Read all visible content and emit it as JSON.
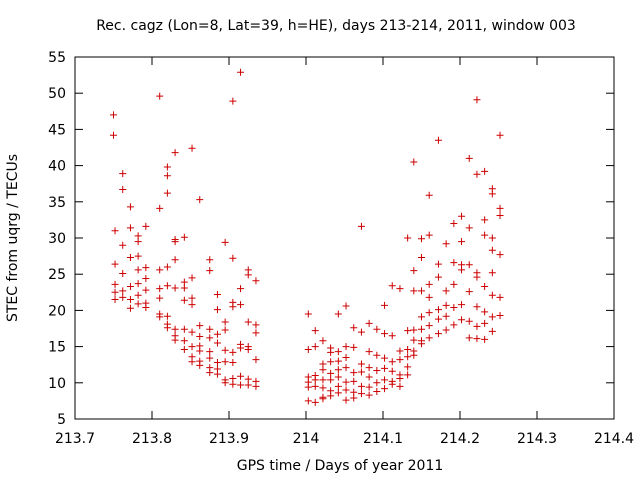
{
  "chart_data": {
    "type": "scatter",
    "title": "Rec. cagz (Lon=8, Lat=39, h=HE), days 213-214, 2011, window 003",
    "xlabel": "GPS time / Days of year 2011",
    "ylabel": "STEC from uqrg / TECUs",
    "xlim": [
      213.7,
      214.4
    ],
    "ylim": [
      5,
      55
    ],
    "xticks": [
      "213.7",
      "213.8",
      "213.9",
      "214",
      "214.1",
      "214.2",
      "214.3",
      "214.4"
    ],
    "yticks": [
      "5",
      "10",
      "15",
      "20",
      "25",
      "30",
      "35",
      "40",
      "45",
      "50",
      "55"
    ],
    "grid": false,
    "marker": "plus",
    "color": "#cc0000",
    "points": [
      [
        213.75,
        47.0
      ],
      [
        213.75,
        44.2
      ],
      [
        213.752,
        31.0
      ],
      [
        213.752,
        26.4
      ],
      [
        213.752,
        23.6
      ],
      [
        213.752,
        22.5
      ],
      [
        213.752,
        21.5
      ],
      [
        213.762,
        38.9
      ],
      [
        213.762,
        36.7
      ],
      [
        213.762,
        29.0
      ],
      [
        213.762,
        25.1
      ],
      [
        213.762,
        22.7
      ],
      [
        213.762,
        21.8
      ],
      [
        213.772,
        34.3
      ],
      [
        213.772,
        31.4
      ],
      [
        213.772,
        27.3
      ],
      [
        213.772,
        23.3
      ],
      [
        213.772,
        21.5
      ],
      [
        213.772,
        20.3
      ],
      [
        213.782,
        30.3
      ],
      [
        213.782,
        29.5
      ],
      [
        213.782,
        27.5
      ],
      [
        213.782,
        25.6
      ],
      [
        213.782,
        23.7
      ],
      [
        213.782,
        22.1
      ],
      [
        213.782,
        20.9
      ],
      [
        213.792,
        31.6
      ],
      [
        213.792,
        25.9
      ],
      [
        213.792,
        24.4
      ],
      [
        213.792,
        22.8
      ],
      [
        213.792,
        21.0
      ],
      [
        213.792,
        20.4
      ],
      [
        213.81,
        49.6
      ],
      [
        213.81,
        34.1
      ],
      [
        213.81,
        25.6
      ],
      [
        213.81,
        23.0
      ],
      [
        213.81,
        21.7
      ],
      [
        213.81,
        19.5
      ],
      [
        213.81,
        19.1
      ],
      [
        213.82,
        39.8
      ],
      [
        213.82,
        38.6
      ],
      [
        213.82,
        36.2
      ],
      [
        213.82,
        26.0
      ],
      [
        213.82,
        23.4
      ],
      [
        213.82,
        19.2
      ],
      [
        213.82,
        18.1
      ],
      [
        213.82,
        17.6
      ],
      [
        213.83,
        41.8
      ],
      [
        213.83,
        29.8
      ],
      [
        213.83,
        29.5
      ],
      [
        213.83,
        27.0
      ],
      [
        213.83,
        23.1
      ],
      [
        213.83,
        17.4
      ],
      [
        213.83,
        16.5
      ],
      [
        213.83,
        15.9
      ],
      [
        213.842,
        30.1
      ],
      [
        213.842,
        23.9
      ],
      [
        213.842,
        23.1
      ],
      [
        213.842,
        21.4
      ],
      [
        213.842,
        17.4
      ],
      [
        213.842,
        15.8
      ],
      [
        213.842,
        14.6
      ],
      [
        213.852,
        42.4
      ],
      [
        213.852,
        24.5
      ],
      [
        213.852,
        21.7
      ],
      [
        213.852,
        20.8
      ],
      [
        213.852,
        17.0
      ],
      [
        213.852,
        15.0
      ],
      [
        213.852,
        13.6
      ],
      [
        213.852,
        12.9
      ],
      [
        213.862,
        35.3
      ],
      [
        213.862,
        17.9
      ],
      [
        213.862,
        16.4
      ],
      [
        213.862,
        15.1
      ],
      [
        213.862,
        14.4
      ],
      [
        213.862,
        13.0
      ],
      [
        213.862,
        12.4
      ],
      [
        213.875,
        27.0
      ],
      [
        213.875,
        25.5
      ],
      [
        213.875,
        17.4
      ],
      [
        213.875,
        16.2
      ],
      [
        213.875,
        14.3
      ],
      [
        213.875,
        13.4
      ],
      [
        213.875,
        12.1
      ],
      [
        213.875,
        11.4
      ],
      [
        213.885,
        22.2
      ],
      [
        213.885,
        20.1
      ],
      [
        213.885,
        16.7
      ],
      [
        213.885,
        15.5
      ],
      [
        213.885,
        12.8
      ],
      [
        213.885,
        11.9
      ],
      [
        213.885,
        11.2
      ],
      [
        213.895,
        29.4
      ],
      [
        213.895,
        18.4
      ],
      [
        213.895,
        17.3
      ],
      [
        213.895,
        14.5
      ],
      [
        213.895,
        12.9
      ],
      [
        213.895,
        10.4
      ],
      [
        213.895,
        10.0
      ],
      [
        213.905,
        48.9
      ],
      [
        213.905,
        27.2
      ],
      [
        213.905,
        21.1
      ],
      [
        213.905,
        20.5
      ],
      [
        213.905,
        14.2
      ],
      [
        213.905,
        12.8
      ],
      [
        213.905,
        10.6
      ],
      [
        213.905,
        9.8
      ],
      [
        213.915,
        52.9
      ],
      [
        213.915,
        23.0
      ],
      [
        213.915,
        20.8
      ],
      [
        213.915,
        15.3
      ],
      [
        213.915,
        14.8
      ],
      [
        213.915,
        10.9
      ],
      [
        213.915,
        9.7
      ],
      [
        213.925,
        25.6
      ],
      [
        213.925,
        24.9
      ],
      [
        213.925,
        18.4
      ],
      [
        213.925,
        15.0
      ],
      [
        213.925,
        14.6
      ],
      [
        213.925,
        10.5
      ],
      [
        213.925,
        9.7
      ],
      [
        213.935,
        24.1
      ],
      [
        213.935,
        18.0
      ],
      [
        213.935,
        16.9
      ],
      [
        213.935,
        13.2
      ],
      [
        213.935,
        10.2
      ],
      [
        213.935,
        9.5
      ],
      [
        214.003,
        19.5
      ],
      [
        214.003,
        14.6
      ],
      [
        214.003,
        10.8
      ],
      [
        214.003,
        10.1
      ],
      [
        214.003,
        9.4
      ],
      [
        214.003,
        7.5
      ],
      [
        214.012,
        17.2
      ],
      [
        214.012,
        15.0
      ],
      [
        214.012,
        11.0
      ],
      [
        214.012,
        10.4
      ],
      [
        214.012,
        9.5
      ],
      [
        214.012,
        7.3
      ],
      [
        214.022,
        15.8
      ],
      [
        214.022,
        12.6
      ],
      [
        214.022,
        11.8
      ],
      [
        214.022,
        10.4
      ],
      [
        214.022,
        9.3
      ],
      [
        214.022,
        8.0
      ],
      [
        214.022,
        7.8
      ],
      [
        214.032,
        14.8
      ],
      [
        214.032,
        14.2
      ],
      [
        214.032,
        12.9
      ],
      [
        214.032,
        11.3
      ],
      [
        214.032,
        10.4
      ],
      [
        214.032,
        8.9
      ],
      [
        214.032,
        8.2
      ],
      [
        214.042,
        19.5
      ],
      [
        214.042,
        14.3
      ],
      [
        214.042,
        13.0
      ],
      [
        214.042,
        11.8
      ],
      [
        214.042,
        10.8
      ],
      [
        214.042,
        9.5
      ],
      [
        214.042,
        8.6
      ],
      [
        214.052,
        20.6
      ],
      [
        214.052,
        15.0
      ],
      [
        214.052,
        13.5
      ],
      [
        214.052,
        12.1
      ],
      [
        214.052,
        10.1
      ],
      [
        214.052,
        9.0
      ],
      [
        214.052,
        7.6
      ],
      [
        214.062,
        17.6
      ],
      [
        214.062,
        14.9
      ],
      [
        214.062,
        11.4
      ],
      [
        214.062,
        10.2
      ],
      [
        214.062,
        8.7
      ],
      [
        214.062,
        7.9
      ],
      [
        214.072,
        31.6
      ],
      [
        214.072,
        17.0
      ],
      [
        214.072,
        12.6
      ],
      [
        214.072,
        11.5
      ],
      [
        214.072,
        9.5
      ],
      [
        214.072,
        8.5
      ],
      [
        214.082,
        18.2
      ],
      [
        214.082,
        14.3
      ],
      [
        214.082,
        12.1
      ],
      [
        214.082,
        10.8
      ],
      [
        214.082,
        9.4
      ],
      [
        214.082,
        8.3
      ],
      [
        214.092,
        17.4
      ],
      [
        214.092,
        13.8
      ],
      [
        214.092,
        11.7
      ],
      [
        214.092,
        10.0
      ],
      [
        214.092,
        8.8
      ],
      [
        214.102,
        20.7
      ],
      [
        214.102,
        16.8
      ],
      [
        214.102,
        13.4
      ],
      [
        214.102,
        12.0
      ],
      [
        214.102,
        10.4
      ],
      [
        214.102,
        9.2
      ],
      [
        214.112,
        23.4
      ],
      [
        214.112,
        16.5
      ],
      [
        214.112,
        12.9
      ],
      [
        214.112,
        11.6
      ],
      [
        214.112,
        10.2
      ],
      [
        214.112,
        9.8
      ],
      [
        214.122,
        23.0
      ],
      [
        214.122,
        14.4
      ],
      [
        214.122,
        13.2
      ],
      [
        214.122,
        11.1
      ],
      [
        214.122,
        10.6
      ],
      [
        214.122,
        9.5
      ],
      [
        214.132,
        30.0
      ],
      [
        214.132,
        17.2
      ],
      [
        214.132,
        14.6
      ],
      [
        214.132,
        13.6
      ],
      [
        214.132,
        12.2
      ],
      [
        214.132,
        11.1
      ],
      [
        214.14,
        40.5
      ],
      [
        214.14,
        25.5
      ],
      [
        214.14,
        22.7
      ],
      [
        214.14,
        17.3
      ],
      [
        214.14,
        15.9
      ],
      [
        214.14,
        14.4
      ],
      [
        214.14,
        13.8
      ],
      [
        214.15,
        29.9
      ],
      [
        214.15,
        27.3
      ],
      [
        214.15,
        22.7
      ],
      [
        214.15,
        19.1
      ],
      [
        214.15,
        17.4
      ],
      [
        214.15,
        15.8
      ],
      [
        214.15,
        15.4
      ],
      [
        214.16,
        35.9
      ],
      [
        214.16,
        30.4
      ],
      [
        214.16,
        23.6
      ],
      [
        214.16,
        21.8
      ],
      [
        214.16,
        19.7
      ],
      [
        214.16,
        17.9
      ],
      [
        214.16,
        16.2
      ],
      [
        214.172,
        43.5
      ],
      [
        214.172,
        26.4
      ],
      [
        214.172,
        24.6
      ],
      [
        214.172,
        20.1
      ],
      [
        214.172,
        18.8
      ],
      [
        214.172,
        16.8
      ],
      [
        214.182,
        29.2
      ],
      [
        214.182,
        22.7
      ],
      [
        214.182,
        20.7
      ],
      [
        214.182,
        19.2
      ],
      [
        214.182,
        17.3
      ],
      [
        214.192,
        32.0
      ],
      [
        214.192,
        26.6
      ],
      [
        214.192,
        23.6
      ],
      [
        214.192,
        20.4
      ],
      [
        214.192,
        18.0
      ],
      [
        214.202,
        33.0
      ],
      [
        214.202,
        29.5
      ],
      [
        214.202,
        26.3
      ],
      [
        214.202,
        25.6
      ],
      [
        214.202,
        20.8
      ],
      [
        214.202,
        18.7
      ],
      [
        214.212,
        41.0
      ],
      [
        214.212,
        31.4
      ],
      [
        214.212,
        26.3
      ],
      [
        214.212,
        22.6
      ],
      [
        214.212,
        18.5
      ],
      [
        214.212,
        16.2
      ],
      [
        214.222,
        49.1
      ],
      [
        214.222,
        38.8
      ],
      [
        214.222,
        25.2
      ],
      [
        214.222,
        24.6
      ],
      [
        214.222,
        20.5
      ],
      [
        214.222,
        17.8
      ],
      [
        214.222,
        16.1
      ],
      [
        214.232,
        39.2
      ],
      [
        214.232,
        32.5
      ],
      [
        214.232,
        30.4
      ],
      [
        214.232,
        23.3
      ],
      [
        214.232,
        19.8
      ],
      [
        214.232,
        18.2
      ],
      [
        214.232,
        16.0
      ],
      [
        214.242,
        36.8
      ],
      [
        214.242,
        36.1
      ],
      [
        214.242,
        30.0
      ],
      [
        214.242,
        28.3
      ],
      [
        214.242,
        25.2
      ],
      [
        214.242,
        22.1
      ],
      [
        214.242,
        19.1
      ],
      [
        214.242,
        17.1
      ],
      [
        214.252,
        44.2
      ],
      [
        214.252,
        34.1
      ],
      [
        214.252,
        33.1
      ],
      [
        214.252,
        27.7
      ],
      [
        214.252,
        21.8
      ],
      [
        214.252,
        19.3
      ]
    ]
  }
}
